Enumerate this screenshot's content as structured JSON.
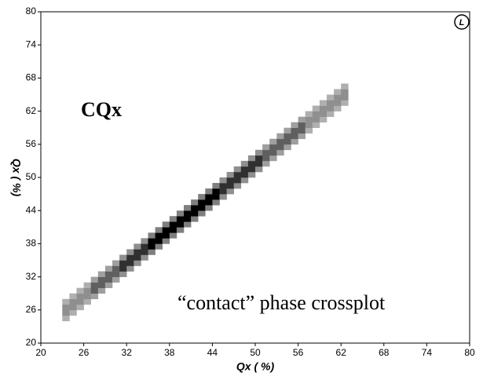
{
  "chart_data": {
    "type": "heatmap",
    "annotations": [
      "CQx",
      "“contact” phase crossplot"
    ],
    "corner_badge": "L",
    "x_label": "Qx ( %)",
    "y_label": "Qx ( %)",
    "xlim": [
      20,
      80
    ],
    "ylim": [
      20,
      80
    ],
    "xticks": [
      20,
      26,
      32,
      38,
      44,
      50,
      56,
      62,
      68,
      74,
      80
    ],
    "yticks": [
      20,
      26,
      32,
      38,
      44,
      50,
      56,
      62,
      68,
      74,
      80
    ],
    "x": [
      23,
      23,
      23,
      23,
      24,
      24,
      24,
      24,
      25,
      25,
      25,
      25,
      26,
      26,
      26,
      26,
      27,
      27,
      27,
      27,
      28,
      28,
      28,
      28,
      29,
      29,
      29,
      29,
      30,
      30,
      30,
      30,
      31,
      31,
      31,
      31,
      32,
      32,
      32,
      32,
      33,
      33,
      33,
      33,
      34,
      34,
      34,
      34,
      35,
      35,
      35,
      35,
      36,
      36,
      36,
      36,
      37,
      37,
      37,
      37,
      38,
      38,
      38,
      38,
      39,
      39,
      39,
      39,
      40,
      40,
      40,
      40,
      41,
      41,
      41,
      41,
      42,
      42,
      42,
      42,
      43,
      43,
      43,
      43,
      44,
      44,
      44,
      44,
      45,
      45,
      45,
      45,
      46,
      46,
      46,
      46,
      47,
      47,
      47,
      47,
      48,
      48,
      48,
      48,
      49,
      49,
      49,
      49,
      50,
      50,
      50,
      50,
      51,
      51,
      51,
      51,
      52,
      52,
      52,
      52,
      53,
      53,
      53,
      53,
      54,
      54,
      54,
      54,
      55,
      55,
      55,
      55,
      56,
      56,
      56,
      56,
      57,
      57,
      57,
      57,
      58,
      58,
      58,
      58,
      59,
      59,
      59,
      59,
      60,
      60,
      60,
      60,
      61,
      61,
      61,
      61,
      62,
      62,
      62,
      62
    ],
    "y": [
      24,
      25,
      26,
      27,
      25,
      26,
      27,
      28,
      26,
      27,
      28,
      29,
      27,
      28,
      29,
      30,
      28,
      29,
      30,
      31,
      29,
      30,
      31,
      32,
      30,
      31,
      32,
      33,
      31,
      32,
      33,
      34,
      32,
      33,
      34,
      35,
      33,
      34,
      35,
      36,
      34,
      35,
      36,
      37,
      35,
      36,
      37,
      38,
      36,
      37,
      38,
      39,
      37,
      38,
      39,
      40,
      38,
      39,
      40,
      41,
      39,
      40,
      41,
      42,
      40,
      41,
      42,
      43,
      41,
      42,
      43,
      44,
      42,
      43,
      44,
      45,
      43,
      44,
      45,
      46,
      44,
      45,
      46,
      47,
      45,
      46,
      47,
      48,
      46,
      47,
      48,
      49,
      47,
      48,
      49,
      50,
      48,
      49,
      50,
      51,
      49,
      50,
      51,
      52,
      50,
      51,
      52,
      53,
      51,
      52,
      53,
      54,
      52,
      53,
      54,
      55,
      53,
      54,
      55,
      56,
      54,
      55,
      56,
      57,
      55,
      56,
      57,
      58,
      56,
      57,
      58,
      59,
      57,
      58,
      59,
      60,
      58,
      59,
      60,
      61,
      59,
      60,
      61,
      62,
      60,
      61,
      62,
      63,
      61,
      62,
      63,
      64,
      62,
      63,
      64,
      65,
      63,
      64,
      65,
      66
    ],
    "values": [
      1,
      3,
      3,
      1,
      1,
      3,
      3,
      1,
      1,
      3,
      3,
      1,
      1,
      3,
      3,
      1,
      2,
      6,
      6,
      2,
      2,
      6,
      6,
      2,
      2,
      6,
      6,
      2,
      2,
      6,
      6,
      2,
      3,
      9,
      9,
      3,
      3,
      9,
      9,
      3,
      3,
      9,
      9,
      3,
      3,
      9,
      9,
      3,
      4,
      12,
      12,
      4,
      4,
      12,
      12,
      4,
      4,
      12,
      12,
      4,
      4,
      12,
      12,
      4,
      4,
      12,
      12,
      4,
      4,
      12,
      12,
      4,
      4,
      12,
      12,
      4,
      4,
      12,
      12,
      4,
      4,
      12,
      12,
      4,
      4,
      12,
      12,
      4,
      3,
      9,
      9,
      3,
      3,
      9,
      9,
      3,
      3,
      9,
      9,
      3,
      3,
      9,
      9,
      3,
      3,
      9,
      9,
      3,
      3,
      9,
      9,
      3,
      2,
      6,
      6,
      2,
      2,
      6,
      6,
      2,
      2,
      6,
      6,
      2,
      2,
      6,
      6,
      2,
      2,
      6,
      6,
      2,
      2,
      6,
      6,
      2,
      1,
      3,
      3,
      1,
      1,
      3,
      3,
      1,
      1,
      3,
      3,
      1,
      1,
      3,
      3,
      1,
      1,
      3,
      3,
      1,
      1,
      3,
      3,
      1
    ]
  }
}
